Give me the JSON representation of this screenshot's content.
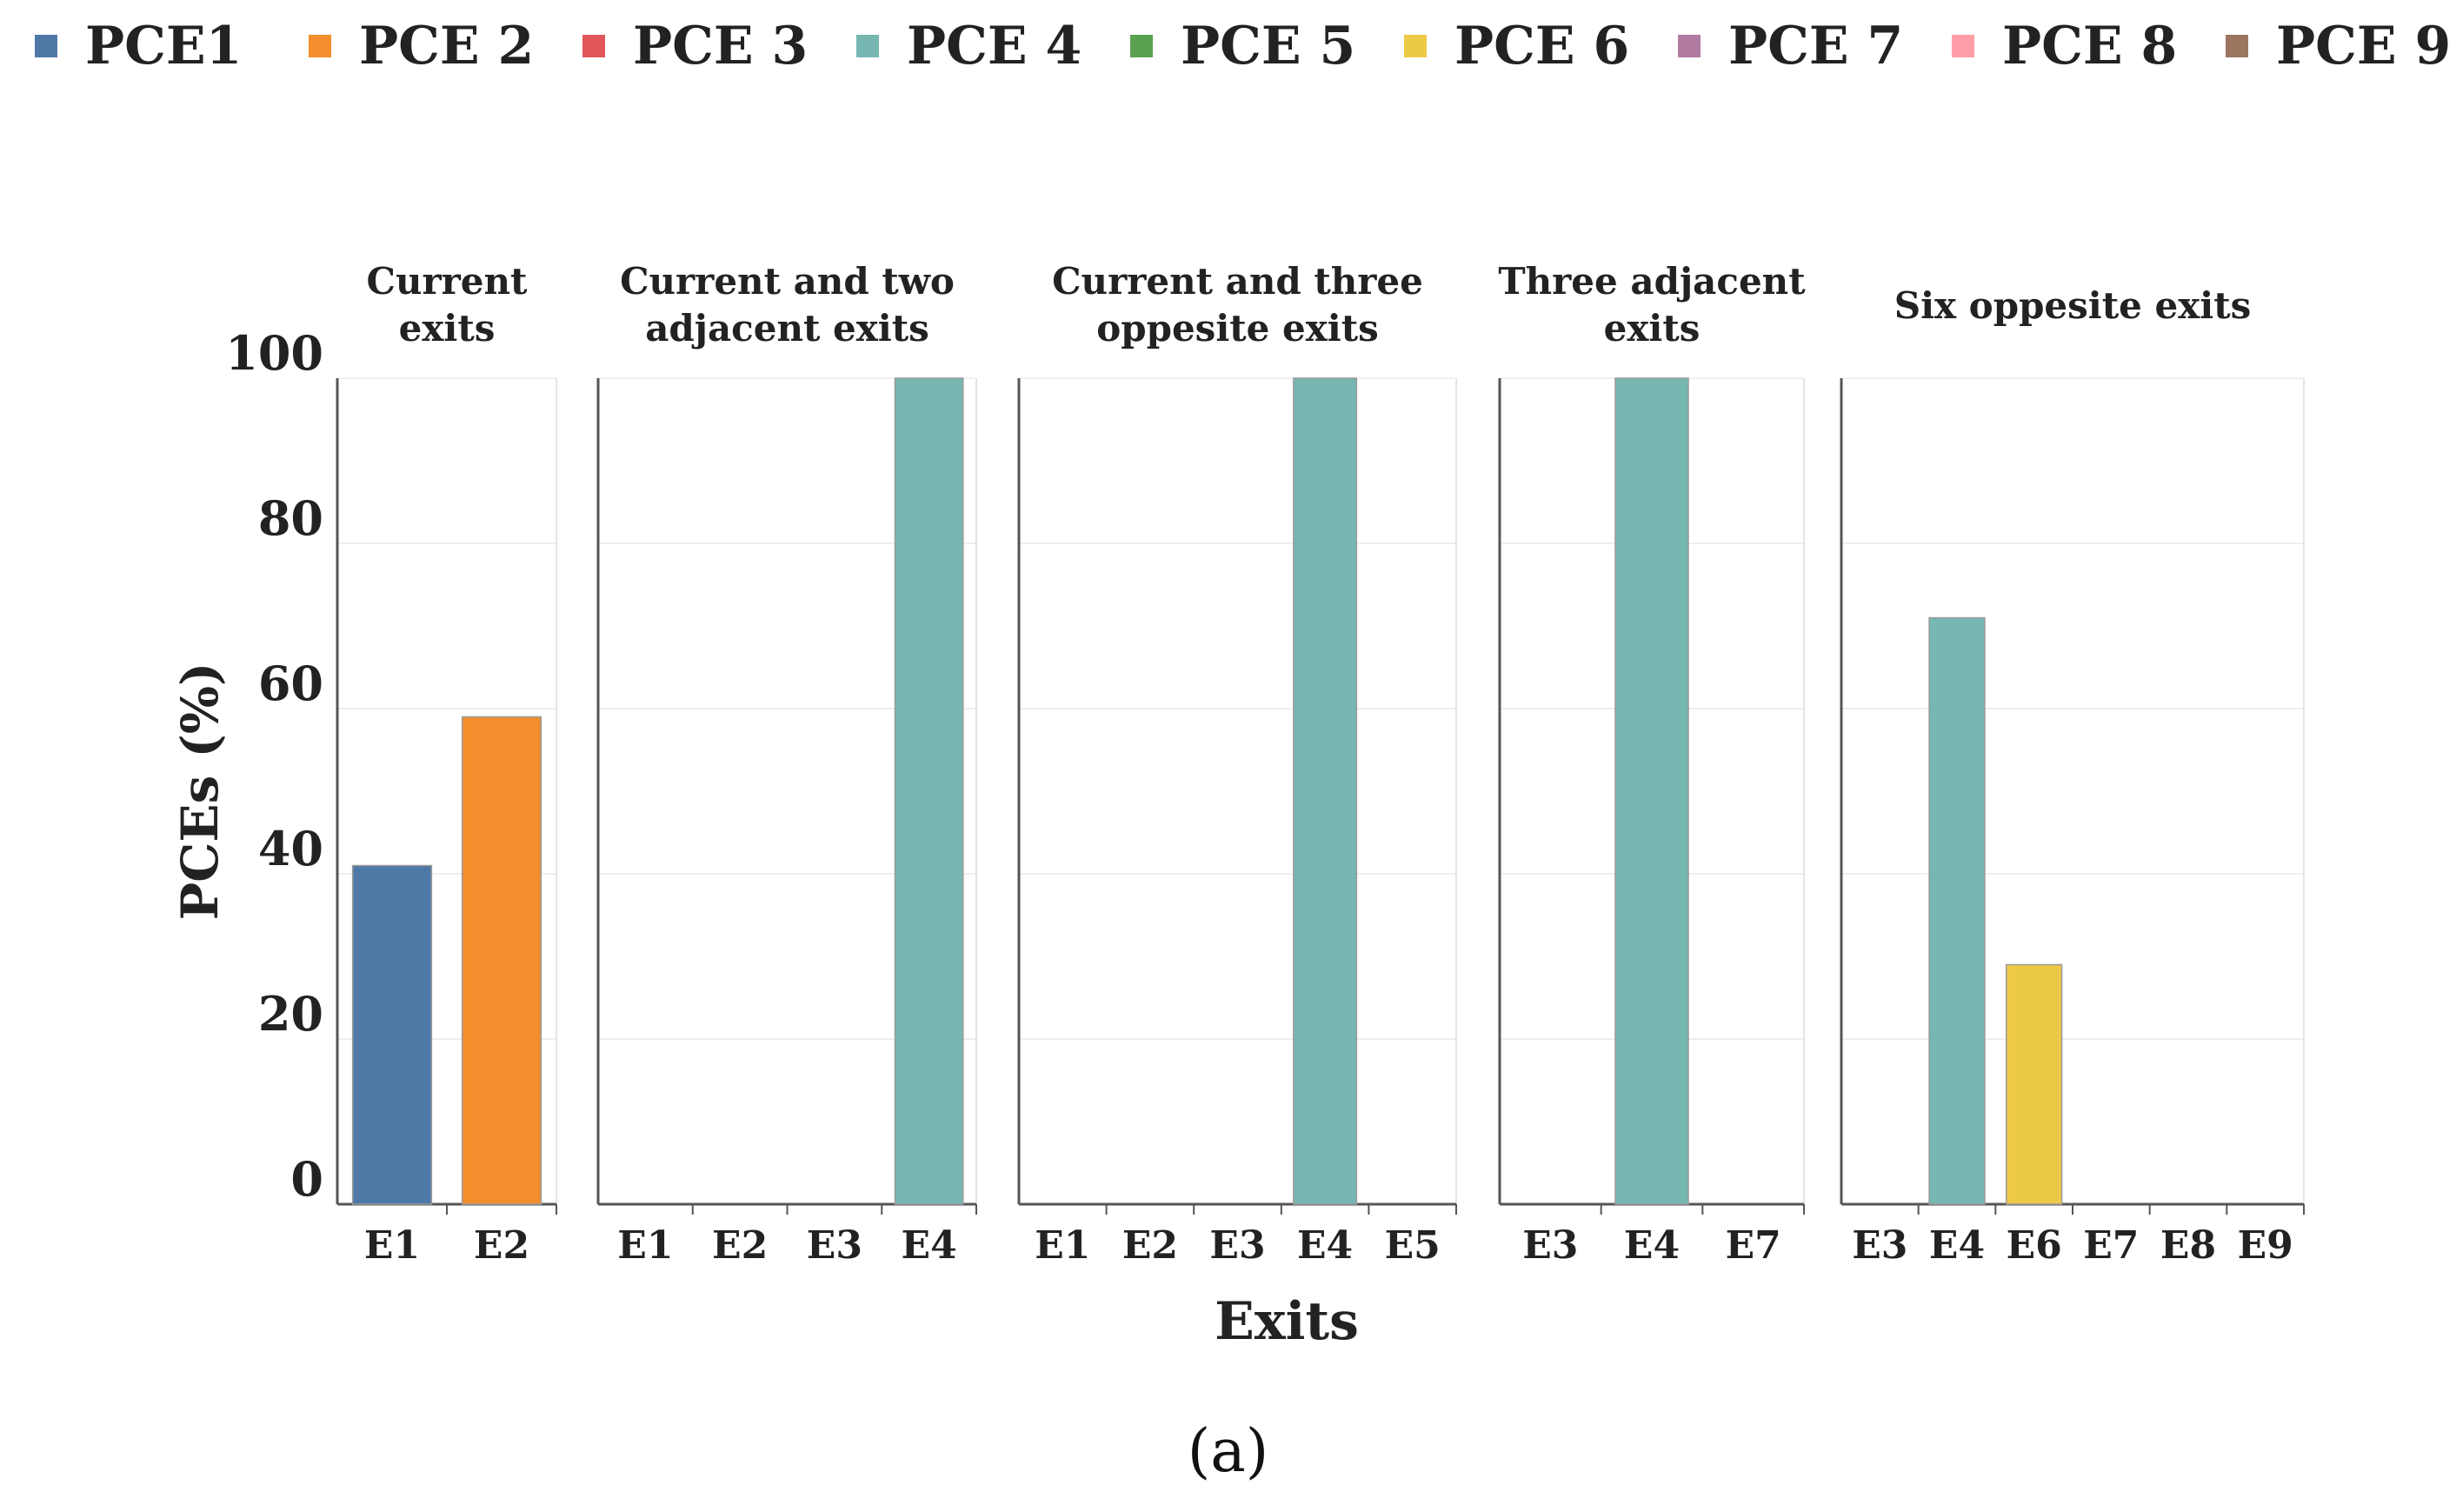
{
  "legend": [
    {
      "label": "PCE1",
      "color": "#4e79a7"
    },
    {
      "label": "PCE 2",
      "color": "#f28e2b"
    },
    {
      "label": "PCE 3",
      "color": "#e15759"
    },
    {
      "label": "PCE 4",
      "color": "#76b7b2"
    },
    {
      "label": "PCE 5",
      "color": "#59a14f"
    },
    {
      "label": "PCE 6",
      "color": "#edc948"
    },
    {
      "label": "PCE 7",
      "color": "#b07aa1"
    },
    {
      "label": "PCE 8",
      "color": "#ff9da7"
    },
    {
      "label": "PCE 9",
      "color": "#9c755f"
    }
  ],
  "chart_data": {
    "type": "bar",
    "title": "",
    "xlabel": "Exits",
    "ylabel": "PCEs (%)",
    "ylim": [
      0,
      100
    ],
    "yticks": [
      0,
      20,
      40,
      60,
      80,
      100
    ],
    "grid": true,
    "legend_position": "top",
    "panels": [
      {
        "title": [
          "Current",
          "exits"
        ],
        "categories": [
          "E1",
          "E2"
        ],
        "values": [
          41,
          59
        ],
        "series": [
          "PCE1",
          "PCE 2"
        ]
      },
      {
        "title": [
          "Current and two",
          "adjacent exits"
        ],
        "categories": [
          "E1",
          "E2",
          "E3",
          "E4"
        ],
        "values": [
          0,
          0,
          0,
          100
        ],
        "series": [
          "PCE1",
          "PCE 2",
          "PCE 3",
          "PCE 4"
        ]
      },
      {
        "title": [
          "Current and three",
          "oppesite exits"
        ],
        "categories": [
          "E1",
          "E2",
          "E3",
          "E4",
          "E5"
        ],
        "values": [
          0,
          0,
          0,
          100,
          0
        ],
        "series": [
          "PCE1",
          "PCE 2",
          "PCE 3",
          "PCE 4",
          "PCE 5"
        ]
      },
      {
        "title": [
          "Three adjacent",
          "exits"
        ],
        "categories": [
          "E3",
          "E4",
          "E7"
        ],
        "values": [
          0,
          100,
          0
        ],
        "series": [
          "PCE 3",
          "PCE 4",
          "PCE 7"
        ]
      },
      {
        "title": [
          "Six oppesite exits"
        ],
        "categories": [
          "E3",
          "E4",
          "E6",
          "E7",
          "E8",
          "E9"
        ],
        "values": [
          0,
          71,
          29,
          0,
          0,
          0
        ],
        "series": [
          "PCE 3",
          "PCE 4",
          "PCE 6",
          "PCE 7",
          "PCE 8",
          "PCE 9"
        ]
      }
    ]
  },
  "caption": "(a)"
}
